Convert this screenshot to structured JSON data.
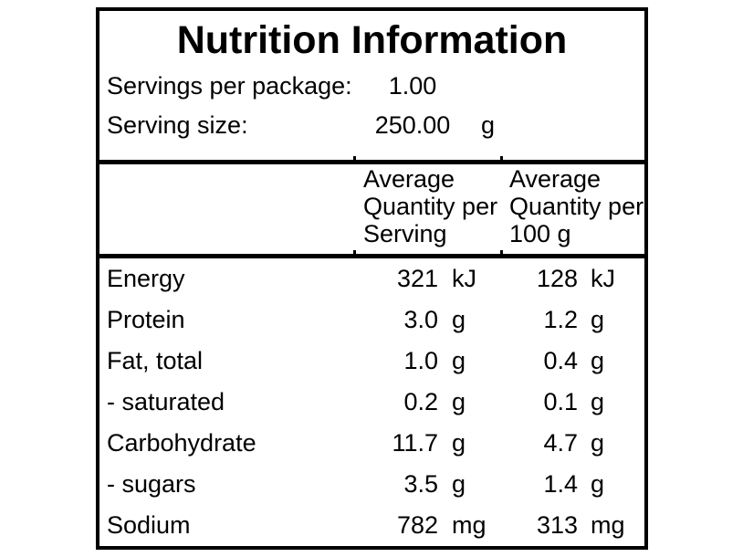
{
  "panel": {
    "title": "Nutrition Information",
    "serving_info": {
      "rows": [
        {
          "label": "Servings per package:",
          "value": "1.00",
          "unit": ""
        },
        {
          "label": "Serving size:",
          "value": "250.00",
          "unit": "g"
        }
      ]
    },
    "header": {
      "col1_lines": [
        "Average",
        "Quantity per",
        "Serving"
      ],
      "col2_lines": [
        "Average",
        "Quantity per",
        "100 g"
      ]
    },
    "nutrients": [
      {
        "label": "Energy",
        "per_serving": "321",
        "per_serving_unit": "kJ",
        "per_100g": "128",
        "per_100g_unit": "kJ"
      },
      {
        "label": "Protein",
        "per_serving": "3.0",
        "per_serving_unit": "g",
        "per_100g": "1.2",
        "per_100g_unit": "g"
      },
      {
        "label": "Fat, total",
        "per_serving": "1.0",
        "per_serving_unit": "g",
        "per_100g": "0.4",
        "per_100g_unit": "g"
      },
      {
        "label": "- saturated",
        "per_serving": "0.2",
        "per_serving_unit": "g",
        "per_100g": "0.1",
        "per_100g_unit": "g"
      },
      {
        "label": "Carbohydrate",
        "per_serving": "11.7",
        "per_serving_unit": "g",
        "per_100g": "4.7",
        "per_100g_unit": "g"
      },
      {
        "label": "- sugars",
        "per_serving": "3.5",
        "per_serving_unit": "g",
        "per_100g": "1.4",
        "per_100g_unit": "g"
      },
      {
        "label": "Sodium",
        "per_serving": "782",
        "per_serving_unit": "mg",
        "per_100g": "313",
        "per_100g_unit": "mg"
      }
    ],
    "colors": {
      "border": "#000000",
      "text": "#000000",
      "background": "#ffffff"
    }
  }
}
